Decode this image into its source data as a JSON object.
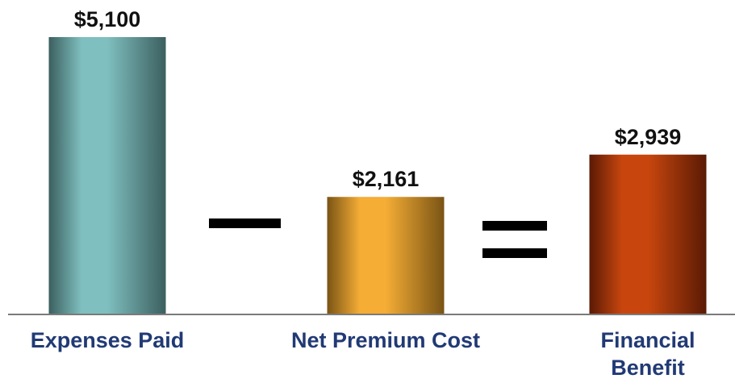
{
  "chart_data": {
    "type": "bar",
    "categories": [
      "Expenses Paid",
      "Net Premium Cost",
      "Financial Benefit"
    ],
    "category_lines": [
      [
        "Expenses Paid"
      ],
      [
        "Net Premium Cost"
      ],
      [
        "Financial",
        "Benefit"
      ]
    ],
    "values": [
      5100,
      2161,
      2939
    ],
    "value_labels": [
      "$5,100",
      "$2,161",
      "$2,939"
    ],
    "operators": [
      "minus",
      "equals"
    ],
    "ylim": [
      0,
      5100
    ],
    "grid": false,
    "legend": "none",
    "title": "",
    "xlabel": "",
    "ylabel": "",
    "colors": {
      "bars": [
        "#7fbfbf",
        "#f5ad35",
        "#c8460e"
      ],
      "bar_shades": [
        "#3c5f5f",
        "#7a5415",
        "#5a1a04"
      ],
      "category_text": "#213a75",
      "value_text": "#111111",
      "baseline": "#7a7a7a",
      "operator": "#000000"
    }
  }
}
